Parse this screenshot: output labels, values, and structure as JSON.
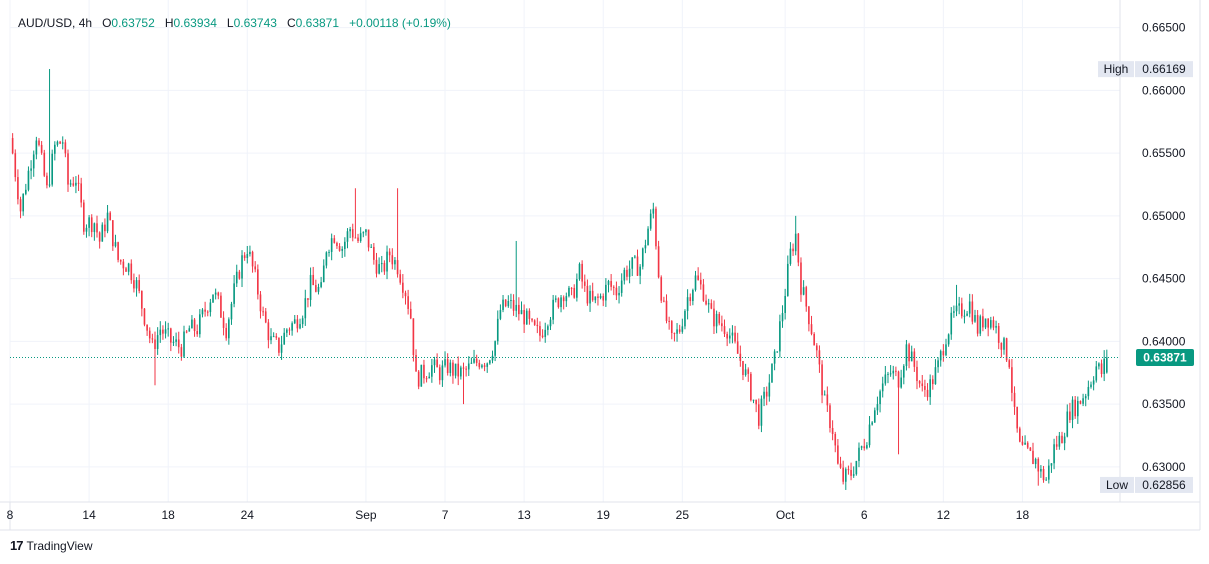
{
  "header": {
    "symbol": "AUD/USD",
    "interval": "4h",
    "o_key": "O",
    "open": "0.63752",
    "h_key": "H",
    "high": "0.63934",
    "l_key": "L",
    "low": "0.63743",
    "c_key": "C",
    "close": "0.63871",
    "change": "+0.00118",
    "change_pct": "(+0.19%)"
  },
  "brand": {
    "name": "TradingView",
    "mark": "17"
  },
  "colors": {
    "up": "#089981",
    "down": "#f23645",
    "grid": "#f0f3fa",
    "axis": "#e0e3eb",
    "text": "#131722",
    "price_tag_bg": "#089981",
    "hl_tag_bg": "#e3e7f1"
  },
  "chart_data": {
    "type": "candlestick",
    "ylim": [
      0.6272,
      0.6672
    ],
    "y_ticks": [
      0.63,
      0.635,
      0.64,
      0.645,
      0.65,
      0.655,
      0.66,
      0.665
    ],
    "y_tick_labels": [
      "0.63000",
      "0.63500",
      "0.64000",
      "0.64500",
      "0.65000",
      "0.65500",
      "0.66000",
      "0.66500"
    ],
    "x_ticks": [
      {
        "label": "8",
        "slot": -1
      },
      {
        "label": "14",
        "slot": 29
      },
      {
        "label": "18",
        "slot": 59
      },
      {
        "label": "24",
        "slot": 89
      },
      {
        "label": "Sep",
        "slot": 134
      },
      {
        "label": "7",
        "slot": 164
      },
      {
        "label": "13",
        "slot": 194
      },
      {
        "label": "19",
        "slot": 224
      },
      {
        "label": "25",
        "slot": 254
      },
      {
        "label": "Oct",
        "slot": 293
      },
      {
        "label": "6",
        "slot": 323
      },
      {
        "label": "12",
        "slot": 353
      },
      {
        "label": "18",
        "slot": 383
      }
    ],
    "slot_range": [
      -1,
      420
    ],
    "last_price": 0.63871,
    "last_price_label": "0.63871",
    "high_label": "High",
    "high_value": 0.66169,
    "high_value_label": "0.66169",
    "low_label": "Low",
    "low_value": 0.62856,
    "low_value_label": "0.62856",
    "anchors": [
      [
        0,
        0.655
      ],
      [
        3,
        0.6505
      ],
      [
        7,
        0.6545
      ],
      [
        9,
        0.6565
      ],
      [
        13,
        0.652
      ],
      [
        16,
        0.6555
      ],
      [
        19,
        0.656
      ],
      [
        21,
        0.6525
      ],
      [
        24,
        0.653
      ],
      [
        27,
        0.6495
      ],
      [
        31,
        0.6495
      ],
      [
        33,
        0.648
      ],
      [
        36,
        0.65
      ],
      [
        40,
        0.6465
      ],
      [
        44,
        0.646
      ],
      [
        47,
        0.6445
      ],
      [
        50,
        0.642
      ],
      [
        53,
        0.6395
      ],
      [
        56,
        0.641
      ],
      [
        60,
        0.64
      ],
      [
        64,
        0.6395
      ],
      [
        67,
        0.641
      ],
      [
        70,
        0.641
      ],
      [
        73,
        0.6425
      ],
      [
        76,
        0.644
      ],
      [
        78,
        0.643
      ],
      [
        81,
        0.641
      ],
      [
        84,
        0.644
      ],
      [
        87,
        0.6465
      ],
      [
        89,
        0.6475
      ],
      [
        92,
        0.645
      ],
      [
        95,
        0.642
      ],
      [
        98,
        0.64
      ],
      [
        101,
        0.6395
      ],
      [
        104,
        0.641
      ],
      [
        107,
        0.6415
      ],
      [
        110,
        0.6425
      ],
      [
        113,
        0.6445
      ],
      [
        117,
        0.644
      ],
      [
        119,
        0.6475
      ],
      [
        122,
        0.6485
      ],
      [
        125,
        0.6475
      ],
      [
        128,
        0.649
      ],
      [
        131,
        0.648
      ],
      [
        134,
        0.6485
      ],
      [
        137,
        0.6465
      ],
      [
        140,
        0.6455
      ],
      [
        143,
        0.647
      ],
      [
        146,
        0.646
      ],
      [
        149,
        0.644
      ],
      [
        151,
        0.642
      ],
      [
        153,
        0.637
      ],
      [
        156,
        0.6375
      ],
      [
        159,
        0.638
      ],
      [
        162,
        0.6375
      ],
      [
        165,
        0.638
      ],
      [
        168,
        0.6375
      ],
      [
        171,
        0.6375
      ],
      [
        174,
        0.638
      ],
      [
        177,
        0.6385
      ],
      [
        180,
        0.6385
      ],
      [
        183,
        0.64
      ],
      [
        185,
        0.6425
      ],
      [
        188,
        0.643
      ],
      [
        191,
        0.6425
      ],
      [
        194,
        0.642
      ],
      [
        197,
        0.641
      ],
      [
        200,
        0.6405
      ],
      [
        203,
        0.642
      ],
      [
        206,
        0.643
      ],
      [
        209,
        0.644
      ],
      [
        212,
        0.6435
      ],
      [
        215,
        0.6455
      ],
      [
        217,
        0.644
      ],
      [
        220,
        0.643
      ],
      [
        223,
        0.6435
      ],
      [
        226,
        0.6445
      ],
      [
        229,
        0.644
      ],
      [
        232,
        0.6455
      ],
      [
        235,
        0.646
      ],
      [
        238,
        0.646
      ],
      [
        241,
        0.649
      ],
      [
        243,
        0.6505
      ],
      [
        245,
        0.6455
      ],
      [
        247,
        0.6425
      ],
      [
        250,
        0.64
      ],
      [
        253,
        0.641
      ],
      [
        256,
        0.6435
      ],
      [
        259,
        0.645
      ],
      [
        262,
        0.644
      ],
      [
        265,
        0.642
      ],
      [
        268,
        0.6415
      ],
      [
        271,
        0.641
      ],
      [
        274,
        0.6395
      ],
      [
        277,
        0.638
      ],
      [
        280,
        0.636
      ],
      [
        283,
        0.634
      ],
      [
        286,
        0.636
      ],
      [
        289,
        0.6385
      ],
      [
        292,
        0.6425
      ],
      [
        295,
        0.647
      ],
      [
        297,
        0.6485
      ],
      [
        299,
        0.6445
      ],
      [
        302,
        0.642
      ],
      [
        305,
        0.639
      ],
      [
        308,
        0.635
      ],
      [
        311,
        0.633
      ],
      [
        313,
        0.63
      ],
      [
        315,
        0.629
      ],
      [
        318,
        0.6295
      ],
      [
        321,
        0.631
      ],
      [
        324,
        0.6325
      ],
      [
        327,
        0.635
      ],
      [
        330,
        0.6365
      ],
      [
        333,
        0.6375
      ],
      [
        336,
        0.637
      ],
      [
        339,
        0.6395
      ],
      [
        342,
        0.638
      ],
      [
        345,
        0.636
      ],
      [
        348,
        0.6365
      ],
      [
        351,
        0.638
      ],
      [
        354,
        0.6405
      ],
      [
        357,
        0.642
      ],
      [
        360,
        0.6425
      ],
      [
        363,
        0.643
      ],
      [
        366,
        0.641
      ],
      [
        369,
        0.642
      ],
      [
        372,
        0.6415
      ],
      [
        375,
        0.64
      ],
      [
        378,
        0.6385
      ],
      [
        380,
        0.634
      ],
      [
        382,
        0.6315
      ],
      [
        385,
        0.631
      ],
      [
        388,
        0.6305
      ],
      [
        390,
        0.6295
      ],
      [
        392,
        0.629
      ],
      [
        395,
        0.6315
      ],
      [
        398,
        0.6325
      ],
      [
        401,
        0.6345
      ],
      [
        404,
        0.635
      ],
      [
        407,
        0.636
      ],
      [
        409,
        0.637
      ],
      [
        411,
        0.638
      ],
      [
        413,
        0.6375
      ],
      [
        415,
        0.6387
      ]
    ],
    "wick_spikes": [
      {
        "slot": 14,
        "high": 0.6617
      },
      {
        "slot": 54,
        "low": 0.6365
      },
      {
        "slot": 130,
        "high": 0.6522
      },
      {
        "slot": 146,
        "high": 0.6522
      },
      {
        "slot": 171,
        "low": 0.635
      },
      {
        "slot": 191,
        "high": 0.648
      },
      {
        "slot": 243,
        "high": 0.651
      },
      {
        "slot": 283,
        "low": 0.633
      },
      {
        "slot": 297,
        "high": 0.65
      },
      {
        "slot": 315,
        "low": 0.6286
      },
      {
        "slot": 336,
        "low": 0.631
      },
      {
        "slot": 358,
        "high": 0.6445
      },
      {
        "slot": 389,
        "low": 0.6285
      }
    ]
  }
}
